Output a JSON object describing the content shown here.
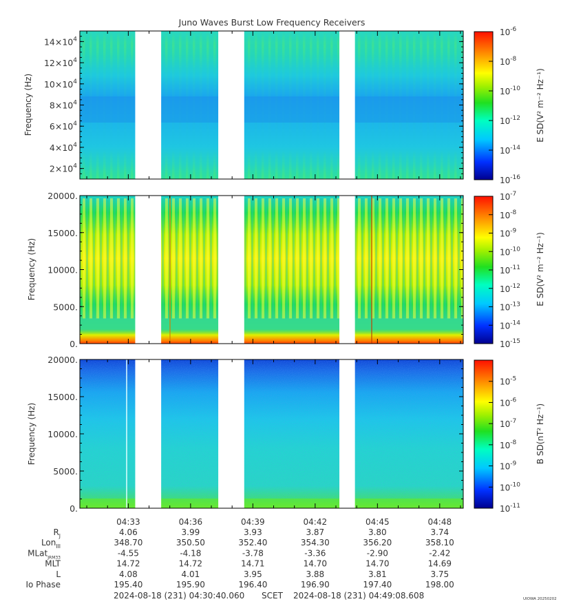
{
  "chart_data": [
    {
      "type": "heatmap",
      "title": "Juno Waves Burst Low Frequency Receivers",
      "ylabel": "Frequency (Hz)",
      "ylim": [
        10000,
        150000
      ],
      "yticks": [
        {
          "value": 20000,
          "mant": "2×10",
          "exp": "4"
        },
        {
          "value": 40000,
          "mant": "4×10",
          "exp": "4"
        },
        {
          "value": 60000,
          "mant": "6×10",
          "exp": "4"
        },
        {
          "value": 80000,
          "mant": "8×10",
          "exp": "4"
        },
        {
          "value": 100000,
          "mant": "10×10",
          "exp": "4"
        },
        {
          "value": 120000,
          "mant": "12×10",
          "exp": "4"
        },
        {
          "value": 140000,
          "mant": "14×10",
          "exp": "4"
        }
      ],
      "colorbar": {
        "label": "E SD(V² m⁻² Hz⁻¹)",
        "log_range": [
          -16,
          -6
        ],
        "ticks": [
          {
            "value": -6,
            "label": "10",
            "exp": "-6"
          },
          {
            "value": -8,
            "label": "10",
            "exp": "-8"
          },
          {
            "value": -10,
            "label": "10",
            "exp": "-10"
          },
          {
            "value": -12,
            "label": "10",
            "exp": "-12"
          },
          {
            "value": -14,
            "label": "10",
            "exp": "-14"
          },
          {
            "value": -16,
            "label": "10",
            "exp": "-16"
          }
        ]
      }
    },
    {
      "type": "heatmap",
      "ylabel": "Frequency (Hz)",
      "ylim": [
        0,
        20000
      ],
      "yticks": [
        {
          "value": 0,
          "mant": "0.",
          "exp": ""
        },
        {
          "value": 5000,
          "mant": "5000.",
          "exp": ""
        },
        {
          "value": 10000,
          "mant": "10000.",
          "exp": ""
        },
        {
          "value": 15000,
          "mant": "15000.",
          "exp": ""
        },
        {
          "value": 20000,
          "mant": "20000.",
          "exp": ""
        }
      ],
      "colorbar": {
        "label": "E SD(V² m⁻² Hz⁻¹)",
        "log_range": [
          -15,
          -7
        ],
        "ticks": [
          {
            "value": -7,
            "label": "10",
            "exp": "-7"
          },
          {
            "value": -8,
            "label": "10",
            "exp": "-8"
          },
          {
            "value": -9,
            "label": "10",
            "exp": "-9"
          },
          {
            "value": -10,
            "label": "10",
            "exp": "-10"
          },
          {
            "value": -11,
            "label": "10",
            "exp": "-11"
          },
          {
            "value": -12,
            "label": "10",
            "exp": "-12"
          },
          {
            "value": -13,
            "label": "10",
            "exp": "-13"
          },
          {
            "value": -14,
            "label": "10",
            "exp": "-14"
          },
          {
            "value": -15,
            "label": "10",
            "exp": "-15"
          }
        ]
      }
    },
    {
      "type": "heatmap",
      "ylabel": "Frequency (Hz)",
      "ylim": [
        0,
        20000
      ],
      "yticks": [
        {
          "value": 0,
          "mant": "0.",
          "exp": ""
        },
        {
          "value": 5000,
          "mant": "5000.",
          "exp": ""
        },
        {
          "value": 10000,
          "mant": "10000.",
          "exp": ""
        },
        {
          "value": 15000,
          "mant": "15000.",
          "exp": ""
        },
        {
          "value": 20000,
          "mant": "20000.",
          "exp": ""
        }
      ],
      "colorbar": {
        "label": "B SD(nT² Hz⁻¹)",
        "log_range": [
          -11,
          -4
        ],
        "ticks": [
          {
            "value": -5,
            "label": "10",
            "exp": "-5"
          },
          {
            "value": -6,
            "label": "10",
            "exp": "-6"
          },
          {
            "value": -7,
            "label": "10",
            "exp": "-7"
          },
          {
            "value": -8,
            "label": "10",
            "exp": "-8"
          },
          {
            "value": -9,
            "label": "10",
            "exp": "-9"
          },
          {
            "value": -10,
            "label": "10",
            "exp": "-10"
          },
          {
            "value": -11,
            "label": "10",
            "exp": "-11"
          }
        ]
      }
    }
  ],
  "time_axis": {
    "start_label": "04:30:40",
    "end_label": "04:49:08",
    "ticks": [
      "04:33",
      "04:36",
      "04:39",
      "04:42",
      "04:45",
      "04:48"
    ],
    "data_gaps": [
      [
        "04:33:20",
        "04:34:35"
      ],
      [
        "04:37:20",
        "04:38:35"
      ],
      [
        "04:43:10",
        "04:43:55"
      ]
    ]
  },
  "ephemeris": {
    "rows": [
      {
        "label": "R",
        "sub": "J",
        "values": [
          "4.06",
          "3.99",
          "3.93",
          "3.87",
          "3.80",
          "3.74"
        ]
      },
      {
        "label": "Lon",
        "sub": "III",
        "values": [
          "348.70",
          "350.50",
          "352.40",
          "354.30",
          "356.20",
          "358.10"
        ]
      },
      {
        "label": "MLat",
        "sub": "JRM33",
        "values": [
          "-4.55",
          "-4.18",
          "-3.78",
          "-3.36",
          "-2.90",
          "-2.42"
        ]
      },
      {
        "label": "MLT",
        "sub": "",
        "values": [
          "14.72",
          "14.72",
          "14.71",
          "14.70",
          "14.70",
          "14.69"
        ]
      },
      {
        "label": "L",
        "sub": "",
        "values": [
          "4.08",
          "4.01",
          "3.95",
          "3.88",
          "3.81",
          "3.75"
        ]
      },
      {
        "label": "Io Phase",
        "sub": "",
        "values": [
          "195.40",
          "195.90",
          "196.40",
          "196.90",
          "197.40",
          "198.00"
        ]
      }
    ]
  },
  "footer": {
    "start": "2024-08-18 (231) 04:30:40.060",
    "scet": "SCET",
    "end": "2024-08-18 (231) 04:49:08.608",
    "stamp": "UIOWA 20250202"
  }
}
